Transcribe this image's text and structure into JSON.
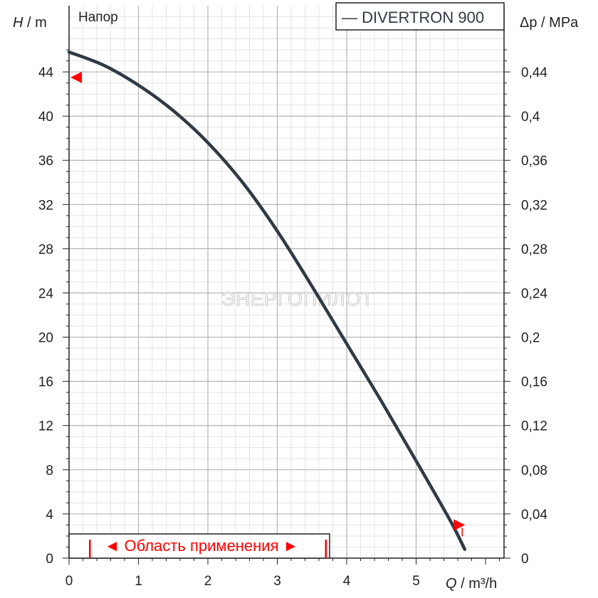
{
  "chart_data": {
    "type": "line",
    "title": "Напор",
    "legend": {
      "label": "— DIVERTRON 900",
      "placement": "top-right"
    },
    "watermark": "ЭНЕРГОПИЛОТ",
    "x_axis": {
      "label_symbol": "Q",
      "label_unit": " / m³/h",
      "range": [
        0,
        5.7
      ],
      "ticks": [
        0,
        1,
        2,
        3,
        4,
        5
      ],
      "tick_labels": [
        "0",
        "1",
        "2",
        "3",
        "4",
        "5"
      ]
    },
    "y_axis_left": {
      "label_symbol": "H",
      "label_unit": " / m",
      "range": [
        0,
        46
      ],
      "ticks": [
        0,
        4,
        8,
        12,
        16,
        20,
        24,
        28,
        32,
        36,
        40,
        44
      ],
      "tick_labels": [
        "0",
        "4",
        "8",
        "12",
        "16",
        "20",
        "24",
        "28",
        "32",
        "36",
        "40",
        "44"
      ]
    },
    "y_axis_right": {
      "label_symbol": "Δp",
      "label_unit": " / MPa",
      "range": [
        0,
        0.46
      ],
      "ticks": [
        0,
        0.04,
        0.08,
        0.12,
        0.16,
        0.2,
        0.24,
        0.28,
        0.32,
        0.36,
        0.4,
        0.44
      ],
      "tick_labels": [
        "0",
        "0,04",
        "0,08",
        "0,12",
        "0,16",
        "0,2",
        "0,24",
        "0,28",
        "0,32",
        "0,36",
        "0,4",
        "0,44"
      ]
    },
    "grid": true,
    "series": [
      {
        "name": "DIVERTRON 900",
        "color": "#2f3a45",
        "x": [
          0,
          0.5,
          1.0,
          1.5,
          2.0,
          2.5,
          3.0,
          3.5,
          4.0,
          4.5,
          5.0,
          5.5,
          5.7
        ],
        "y": [
          45.8,
          44.6,
          42.8,
          40.5,
          37.6,
          34.0,
          29.6,
          24.6,
          19.4,
          14.2,
          8.8,
          3.3,
          0.8
        ]
      }
    ],
    "application_range": {
      "label": "◄ Область применения ►",
      "from_x": 0.3,
      "to_x": 3.7
    },
    "markers": {
      "max_head_marker_y": 43.5,
      "end_marker_x": 5.5,
      "end_marker_y": 3.0,
      "marker_color": "#ff0000"
    }
  }
}
